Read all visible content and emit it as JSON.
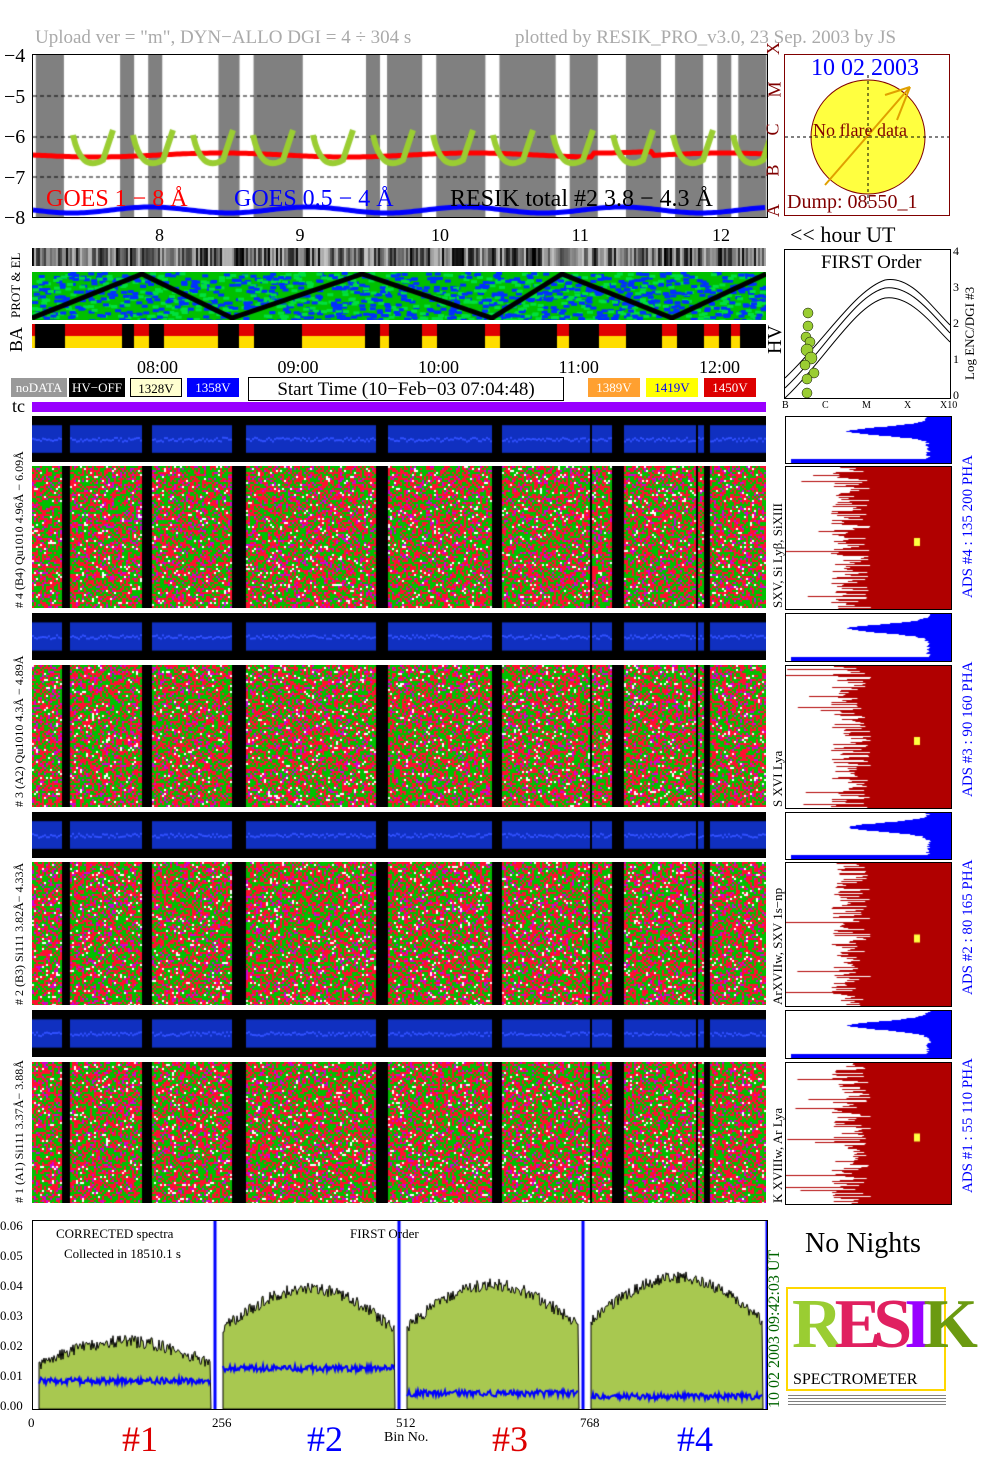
{
  "header": {
    "left": "Upload ver = \"m\", DYN−ALLO DGI =   4 ÷ 304 s",
    "right": "plotted by RESIK_PRO_v3.0, 23 Sep. 2003 by JS"
  },
  "goes": {
    "yticks": [
      "−4",
      "−5",
      "−6",
      "−7",
      "−8"
    ],
    "class_letters": [
      "A",
      "B",
      "C",
      "M",
      "X"
    ],
    "legend": {
      "goes18": "GOES 1 − 8 Å",
      "goes054": "GOES 0.5 − 4 Å",
      "resik": "RESIK total #2  3.8 − 4.3 Å"
    },
    "hours": [
      "8",
      "9",
      "10",
      "11",
      "12"
    ],
    "hour_unit": "<< hour UT",
    "colors": {
      "goes18": "#ff0000",
      "goes054": "#0000ff",
      "resik": "#9acd32",
      "shade": "#808080"
    }
  },
  "flare": {
    "date": "10 02 2003",
    "text": "No flare data",
    "dump": "Dump: 08550_1"
  },
  "strips": {
    "prot_label": "PROT & EL",
    "ba_label": "BA",
    "hv_label": "HV"
  },
  "first_order": {
    "title": "FIRST Order",
    "ylabel": "Log ENC/DGI #3",
    "yticks": [
      "0",
      "1",
      "2",
      "3",
      "4"
    ],
    "xticks": [
      "B",
      "C",
      "M",
      "X",
      "X10"
    ]
  },
  "times": [
    "08:00",
    "09:00",
    "10:00",
    "11:00",
    "12:00"
  ],
  "legend": {
    "nodata": "noDATA",
    "hvoff": "HV−OFF",
    "v1328": "1328V",
    "v1358": "1358V",
    "start": "Start Time (10−Feb−03 07:04:48)",
    "v1389": "1389V",
    "v1419": "1419V",
    "v1450": "1450V",
    "tc": "tc"
  },
  "panels": [
    {
      "left": "# 4 (B4) Qu1010 4.96Å − 6.09Å",
      "mid": "SXV, Si Lyβ, SiXIII",
      "right": "ADS #4 :  135 200  PHA"
    },
    {
      "left": "# 3 (A2) Qu1010 4.3Å − 4.89Å",
      "mid": "S XVI Lya",
      "right": "ADS #3 :   90 160  PHA"
    },
    {
      "left": "# 2 (B3) Si111 3.82Å− 4.33Å",
      "mid": "ArXVIIw, SXV 1s−np",
      "right": "ADS #2 :   80 165  PHA"
    },
    {
      "left": "# 1 (A1) Si111 3.37Å− 3.88Å",
      "mid": "K XVIIIw, Ar Lya",
      "right": "ADS #1 :   55 110  PHA"
    }
  ],
  "bottom": {
    "note1": "CORRECTED spectra",
    "note2": "Collected in 18510.1 s",
    "order": "FIRST Order",
    "date_ut": "10 02 2003   09:42:03 UT",
    "no_nights": "No Nights",
    "xlabel": "Bin No.",
    "channels": [
      "#1",
      "#2",
      "#3",
      "#4"
    ],
    "logo_text": "SPECTROMETER",
    "logo_letters": "RESIK"
  },
  "chart_data": [
    {
      "type": "line",
      "title": "",
      "xlabel": "hour UT",
      "ylabel": "",
      "xlim": [
        7.08,
        12.3
      ],
      "ylim": [
        -8,
        -4
      ],
      "grid": "dashed at -5,-6,-7",
      "series": [
        {
          "name": "GOES 1 − 8 Å",
          "level": -6.45
        },
        {
          "name": "GOES 0.5 − 4 Å",
          "level": -8.0
        },
        {
          "name": "RESIK total #2  3.8 − 4.3 Å",
          "range": [
            -7.1,
            -5.7
          ]
        }
      ]
    },
    {
      "type": "area",
      "title": "",
      "xlabel": "Bin No.",
      "xticks": [
        0,
        256,
        512,
        768
      ],
      "ylim": [
        0,
        0.06
      ],
      "yticks": [
        "0.00",
        "0.01",
        "0.02",
        "0.03",
        "0.04",
        "0.05",
        "0.06"
      ],
      "series": [
        {
          "name": "CORRECTED spectra",
          "channel_mean": [
            0.018,
            0.032,
            0.033,
            0.035
          ]
        },
        {
          "channel_mean": [
            0.009,
            0.013,
            0.005,
            0.004
          ]
        }
      ]
    }
  ]
}
